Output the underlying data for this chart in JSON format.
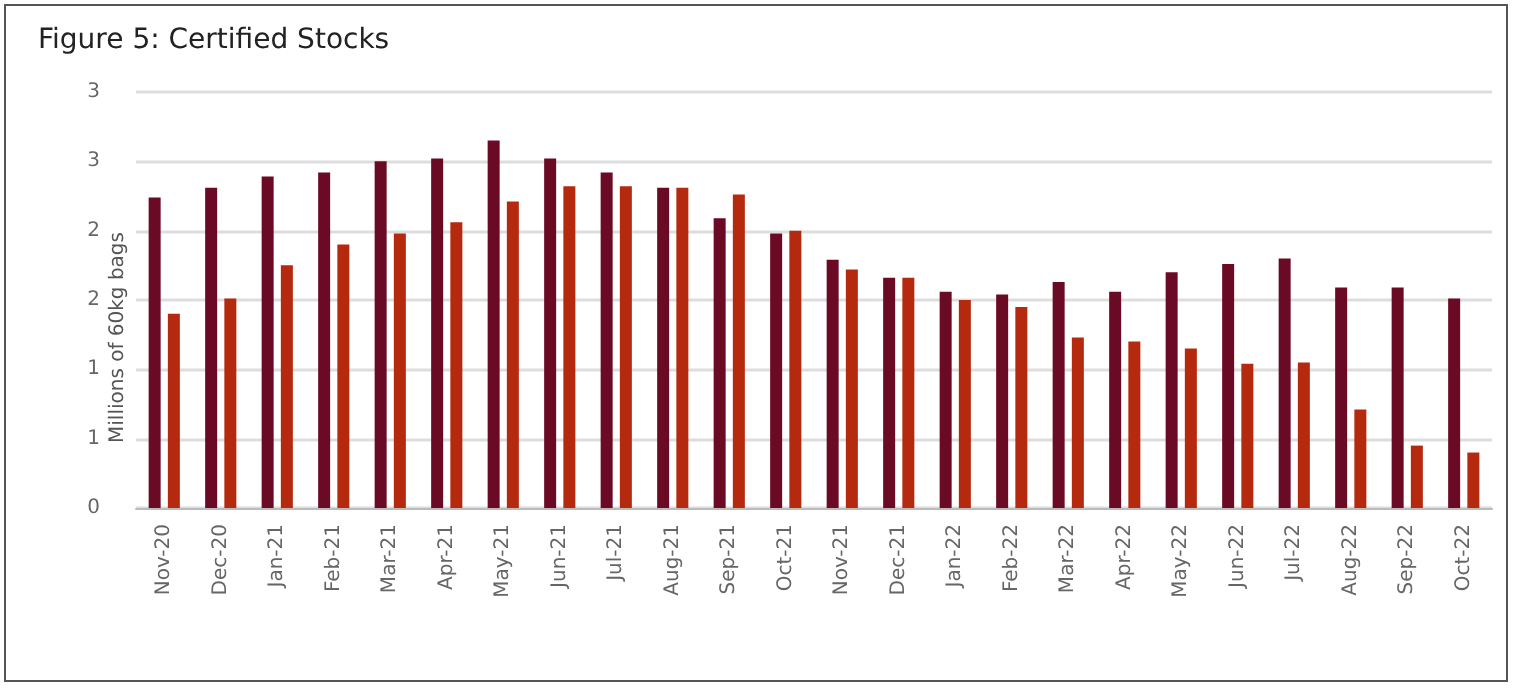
{
  "chart_data": {
    "type": "bar",
    "title": "Figure 5: Certified Stocks",
    "ylabel": "Millions of 60kg bags",
    "categories": [
      "Nov-20",
      "Dec-20",
      "Jan-21",
      "Feb-21",
      "Mar-21",
      "Apr-21",
      "May-21",
      "Jun-21",
      "Jul-21",
      "Aug-21",
      "Sep-21",
      "Oct-21",
      "Nov-21",
      "Dec-21",
      "Jan-22",
      "Feb-22",
      "Mar-22",
      "Apr-22",
      "May-22",
      "Jun-22",
      "Jul-22",
      "Aug-22",
      "Sep-22",
      "Oct-22"
    ],
    "series": [
      {
        "color": "#6b0a24",
        "values": [
          2.24,
          2.31,
          2.39,
          2.42,
          2.5,
          2.52,
          2.65,
          2.52,
          2.42,
          2.31,
          2.09,
          1.98,
          1.79,
          1.66,
          1.56,
          1.54,
          1.63,
          1.56,
          1.7,
          1.76,
          1.8,
          1.59,
          1.59,
          1.51
        ]
      },
      {
        "color": "#b5290e",
        "values": [
          1.4,
          1.51,
          1.75,
          1.9,
          1.98,
          2.06,
          2.21,
          2.32,
          2.32,
          2.31,
          2.26,
          2.0,
          1.72,
          1.66,
          1.5,
          1.45,
          1.23,
          1.2,
          1.15,
          1.04,
          1.05,
          0.71,
          0.45,
          0.4
        ]
      }
    ],
    "ylim": [
      0,
      3
    ],
    "yticks": [
      0,
      {
        "value": 0.5,
        "label": "1"
      },
      1,
      {
        "value": 1.5,
        "label": "2"
      },
      2,
      {
        "value": 2.5,
        "label": "3"
      },
      3
    ],
    "grid": "y"
  }
}
